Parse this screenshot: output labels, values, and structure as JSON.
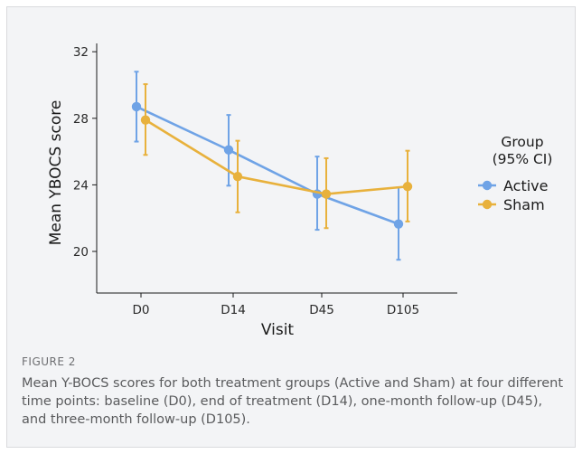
{
  "chart_data": {
    "type": "line",
    "categories": [
      "D0",
      "D14",
      "D45",
      "D105"
    ],
    "xlabel": "Visit",
    "ylabel": "Mean YBOCS score",
    "ylim": [
      17.5,
      32.5
    ],
    "yticks": [
      20,
      24,
      28,
      32
    ],
    "legend": {
      "title_line1": "Group",
      "title_line2": "(95% CI)",
      "placement": "right"
    },
    "series": [
      {
        "name": "Active",
        "color": "#6fa3e6",
        "values": [
          28.7,
          26.1,
          23.45,
          21.65
        ],
        "ci_low": [
          26.6,
          23.95,
          21.3,
          19.5
        ],
        "ci_high": [
          30.8,
          28.2,
          25.7,
          23.85
        ]
      },
      {
        "name": "Sham",
        "color": "#e8b13c",
        "values": [
          27.9,
          24.5,
          23.45,
          23.9
        ],
        "ci_low": [
          25.8,
          22.35,
          21.4,
          21.8
        ],
        "ci_high": [
          30.05,
          26.65,
          25.6,
          26.05
        ]
      }
    ]
  },
  "figure": {
    "label": "FIGURE 2",
    "caption": "Mean Y-BOCS scores for both treatment groups (Active and Sham) at four different time points: baseline (D0), end of treatment (D14), one-month follow-up (D45), and three-month follow-up (D105)."
  }
}
